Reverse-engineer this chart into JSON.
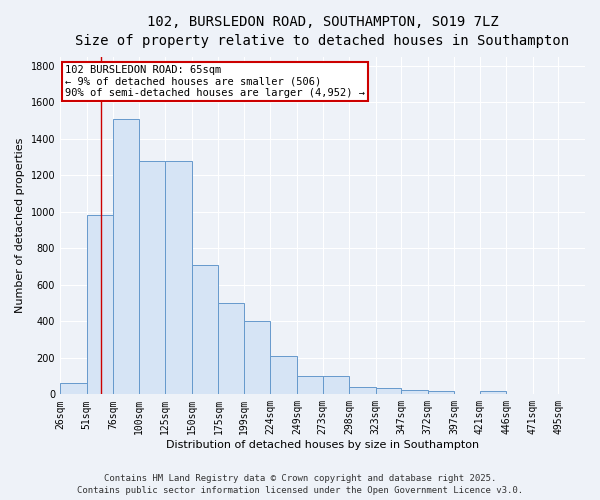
{
  "title_line1": "102, BURSLEDON ROAD, SOUTHAMPTON, SO19 7LZ",
  "title_line2": "Size of property relative to detached houses in Southampton",
  "xlabel": "Distribution of detached houses by size in Southampton",
  "ylabel": "Number of detached properties",
  "bin_edges": [
    26,
    51,
    76,
    100,
    125,
    150,
    175,
    199,
    224,
    249,
    273,
    298,
    323,
    347,
    372,
    397,
    421,
    446,
    471,
    495,
    520
  ],
  "bar_heights": [
    60,
    980,
    1510,
    1280,
    1280,
    710,
    500,
    400,
    210,
    100,
    100,
    40,
    35,
    25,
    20,
    0,
    20,
    0,
    0,
    0
  ],
  "bar_color": "#d6e4f5",
  "bar_edge_color": "#6699cc",
  "red_line_x": 65,
  "annotation_text": "102 BURSLEDON ROAD: 65sqm\n← 9% of detached houses are smaller (506)\n90% of semi-detached houses are larger (4,952) →",
  "annotation_box_color": "#ffffff",
  "annotation_border_color": "#cc0000",
  "ylim": [
    0,
    1850
  ],
  "yticks": [
    0,
    200,
    400,
    600,
    800,
    1000,
    1200,
    1400,
    1600,
    1800
  ],
  "bg_color": "#eef2f8",
  "grid_color": "#ffffff",
  "footer_line1": "Contains HM Land Registry data © Crown copyright and database right 2025.",
  "footer_line2": "Contains public sector information licensed under the Open Government Licence v3.0.",
  "title_fontsize": 10,
  "subtitle_fontsize": 9,
  "axis_label_fontsize": 8,
  "tick_fontsize": 7,
  "annotation_fontsize": 7.5,
  "footer_fontsize": 6.5
}
